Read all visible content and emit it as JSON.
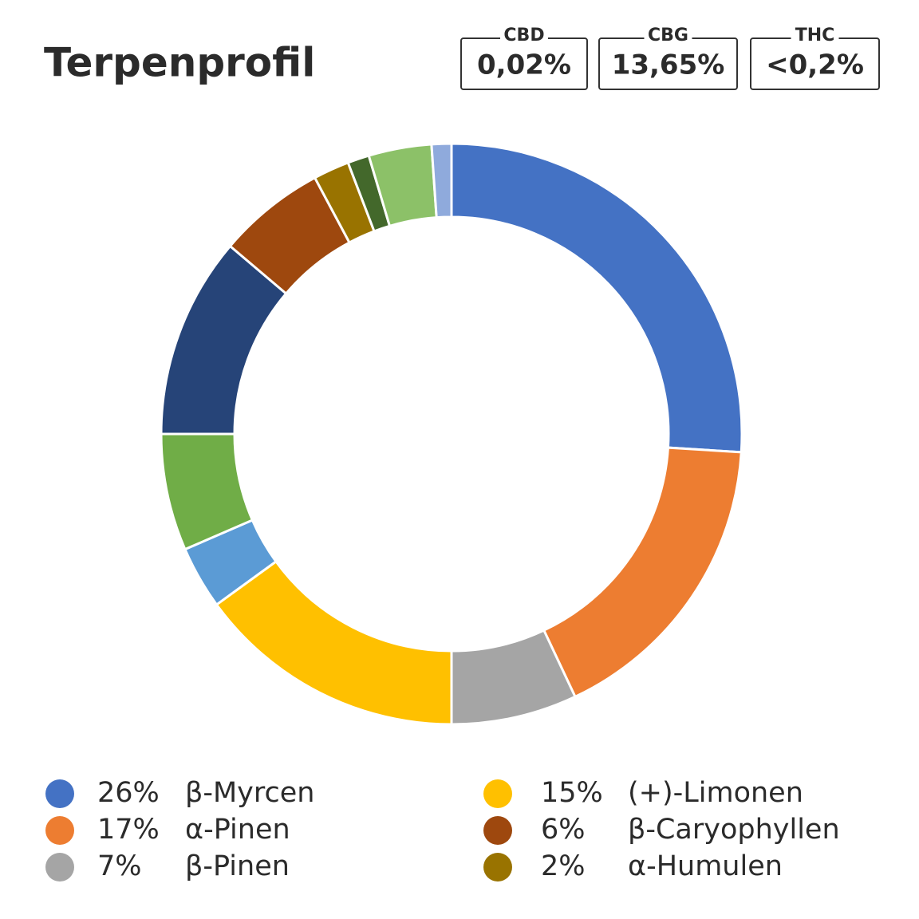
{
  "header": {
    "title": "Terpenprofil",
    "cannabinoids": [
      {
        "label": "CBD",
        "value": "0,02%"
      },
      {
        "label": "CBG",
        "value": "13,65%"
      },
      {
        "label": "THC",
        "value": "<0,2%"
      }
    ]
  },
  "chart_data": {
    "type": "donut",
    "categories": [
      "β-Myrcen",
      "α-Pinen",
      "β-Pinen",
      "(+)-Limonen",
      null,
      null,
      null,
      "β-Caryophyllen",
      "α-Humulen",
      null,
      null,
      null
    ],
    "values": [
      26,
      17,
      7,
      15,
      3.5,
      6.5,
      11.2,
      6,
      2,
      1.2,
      3.5,
      1.1
    ],
    "value_labels": [
      "26%",
      "17%",
      "7%",
      "15%",
      null,
      null,
      null,
      "6%",
      "2%",
      null,
      null,
      null
    ],
    "colors": [
      "#4472c4",
      "#ed7d31",
      "#a5a5a5",
      "#ffc000",
      "#5b9bd5",
      "#70ad47",
      "#264478",
      "#9e480e",
      "#997300",
      "#43682b",
      "#8cc168",
      "#8faadc"
    ]
  }
}
